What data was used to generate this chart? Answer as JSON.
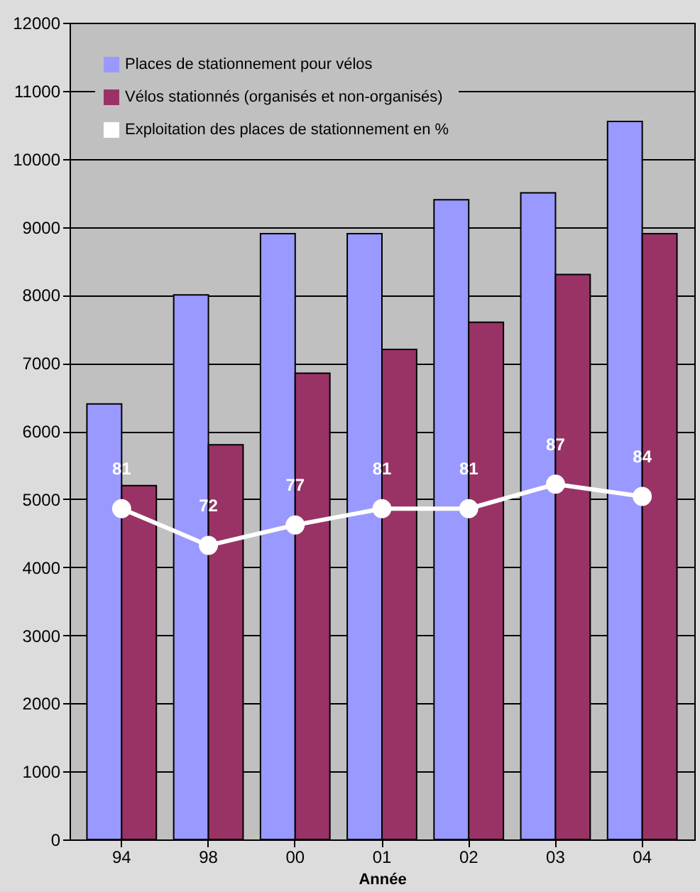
{
  "chart_data": {
    "type": "bar",
    "xlabel": "Année",
    "categories": [
      "94",
      "98",
      "00",
      "01",
      "02",
      "03",
      "04"
    ],
    "series": [
      {
        "name": "Places de stationnement pour vélos",
        "color": "#9999ff",
        "values": [
          6400,
          8000,
          8900,
          8900,
          9400,
          9500,
          10550
        ]
      },
      {
        "name": "Vélos stationnés (organisés et non-organisés)",
        "color": "#993366",
        "values": [
          5200,
          5800,
          6850,
          7200,
          7600,
          8300,
          8900
        ]
      },
      {
        "name": "Exploitation des places de stationnement en %",
        "type": "line",
        "axis": "y2",
        "color": "#ffffff",
        "marker": "circle",
        "values": [
          81,
          72,
          77,
          81,
          81,
          87,
          84
        ],
        "value_labels": [
          "81",
          "72",
          "77",
          "81",
          "81",
          "87",
          "84"
        ]
      }
    ],
    "ylim": [
      0,
      12000
    ],
    "yticks": [
      0,
      1000,
      2000,
      3000,
      4000,
      5000,
      6000,
      7000,
      8000,
      9000,
      10000,
      11000,
      12000
    ],
    "y2lim": [
      0,
      200
    ],
    "grid": "y",
    "legend": "top left"
  }
}
